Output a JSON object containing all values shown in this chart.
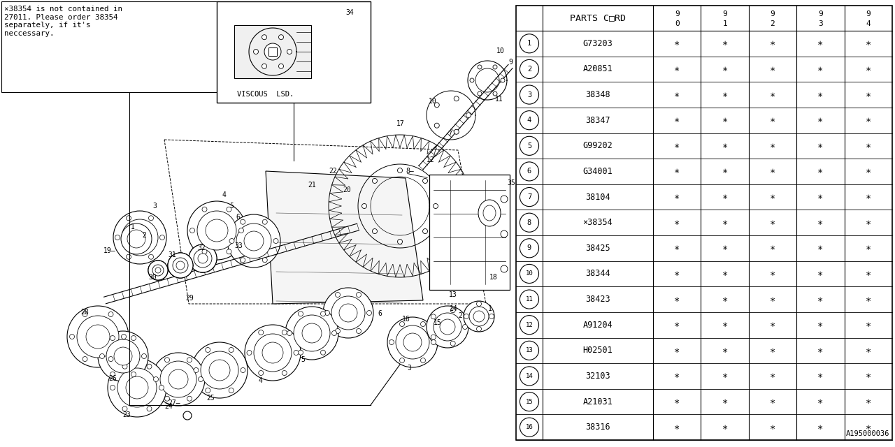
{
  "bg_color": "#ffffff",
  "title_text": "PARTS C□RD",
  "col_headers_top": [
    "9",
    "9",
    "9",
    "9",
    "9"
  ],
  "col_headers_bot": [
    "0",
    "1",
    "2",
    "3",
    "4"
  ],
  "rows": [
    {
      "num": "1",
      "code": "G73203"
    },
    {
      "num": "2",
      "code": "A20851"
    },
    {
      "num": "3",
      "code": "38348"
    },
    {
      "num": "4",
      "code": "38347"
    },
    {
      "num": "5",
      "code": "G99202"
    },
    {
      "num": "6",
      "code": "G34001"
    },
    {
      "num": "7",
      "code": "38104"
    },
    {
      "num": "8",
      "code": "×38354"
    },
    {
      "num": "9",
      "code": "38425"
    },
    {
      "num": "10",
      "code": "38344"
    },
    {
      "num": "11",
      "code": "38423"
    },
    {
      "num": "12",
      "code": "A91204"
    },
    {
      "num": "13",
      "code": "H02501"
    },
    {
      "num": "14",
      "code": "32103"
    },
    {
      "num": "15",
      "code": "A21031"
    },
    {
      "num": "16",
      "code": "38316"
    }
  ],
  "note_text": "×38354 is not contained in\n27011. Please order 38354\nseparately, if it's\nneccessary.",
  "viscous_label": "VISCOUS  LSD.",
  "footer_code": "A195000036",
  "star_char": "∗"
}
